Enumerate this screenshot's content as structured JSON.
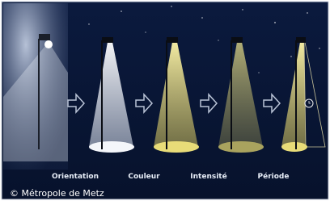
{
  "labels": [
    "Orientation",
    "Couleur",
    "Intensité",
    "Période"
  ],
  "credit": "© Métropole de Metz"
}
